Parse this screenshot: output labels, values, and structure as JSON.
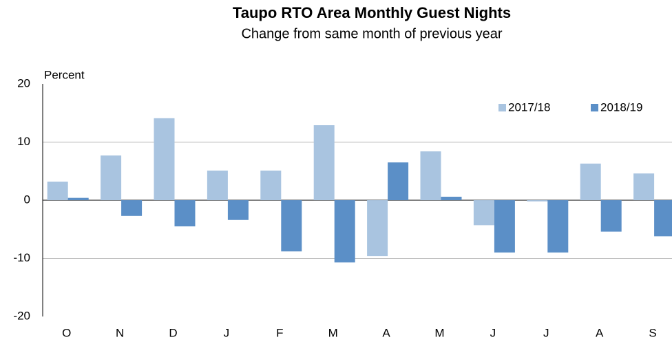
{
  "chart_data": {
    "type": "bar",
    "title": "Taupo RTO Area Monthly Guest Nights",
    "subtitle": "Change from same month of previous year",
    "y_label": "Percent",
    "categories": [
      "O",
      "N",
      "D",
      "J",
      "F",
      "M",
      "A",
      "M",
      "J",
      "J",
      "A",
      "S"
    ],
    "series": [
      {
        "name": "2017/18",
        "color": "#a9c4e0",
        "values": [
          3.2,
          7.7,
          14.1,
          5.1,
          5.1,
          12.9,
          -9.6,
          8.4,
          -4.3,
          -0.2,
          6.3,
          4.6
        ]
      },
      {
        "name": "2018/19",
        "color": "#5b8fc7",
        "values": [
          0.4,
          -2.7,
          -4.5,
          -3.4,
          -8.8,
          -10.7,
          6.5,
          0.6,
          -9.0,
          -9.0,
          -5.4,
          -6.2
        ]
      }
    ],
    "ylim": [
      -20,
      20
    ],
    "yticks": [
      -20,
      -10,
      0,
      10,
      20
    ],
    "grid": true,
    "legend": "top-right"
  }
}
